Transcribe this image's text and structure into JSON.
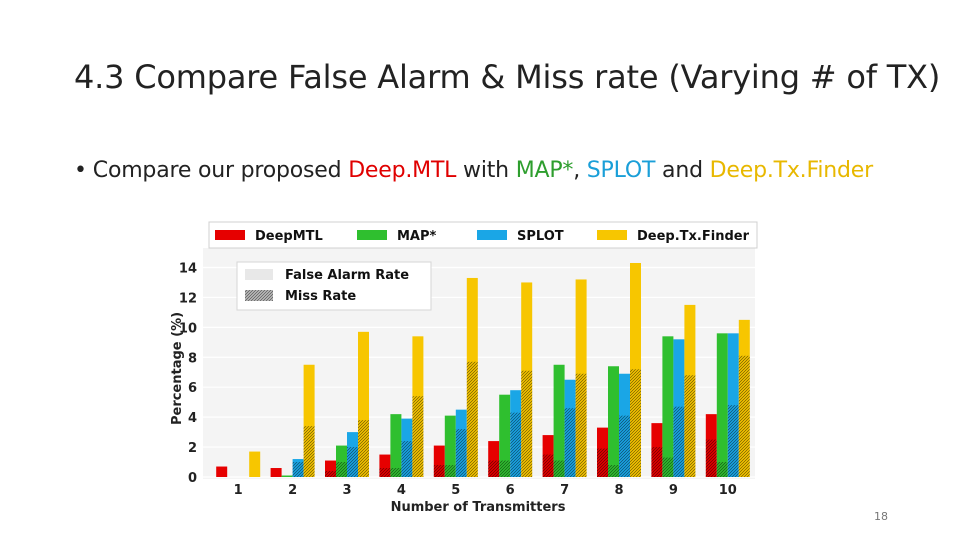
{
  "slide": {
    "title": "4.3 Compare False Alarm & Miss rate (Varying # of TX)",
    "bullet_parts": [
      {
        "text": "Compare our proposed ",
        "color": "#222222"
      },
      {
        "text": "Deep.MTL",
        "color": "#e00000"
      },
      {
        "text": " with ",
        "color": "#222222"
      },
      {
        "text": "MAP*",
        "color": "#2e9e2e"
      },
      {
        "text": ", ",
        "color": "#222222"
      },
      {
        "text": "SPLOT",
        "color": "#1a9fd8"
      },
      {
        "text": " and ",
        "color": "#222222"
      },
      {
        "text": "Deep.Tx.Finder",
        "color": "#e8b800"
      }
    ],
    "page_number": "18"
  },
  "chart_data": {
    "type": "bar",
    "subtype": "grouped-stacked",
    "xlabel": "Number of Transmitters",
    "ylabel": "Percentage (%)",
    "ylim": [
      0,
      14.5
    ],
    "yticks": [
      0,
      2,
      4,
      6,
      8,
      10,
      12,
      14
    ],
    "categories": [
      "1",
      "2",
      "3",
      "4",
      "5",
      "6",
      "7",
      "8",
      "9",
      "10"
    ],
    "legend_methods": {
      "placement": "top"
    },
    "legend_components": {
      "placement": "top-left",
      "entries": [
        {
          "name": "False Alarm Rate",
          "pattern": "solid"
        },
        {
          "name": "Miss Rate",
          "pattern": "hatched"
        }
      ]
    },
    "series": [
      {
        "name": "DeepMTL",
        "color": "#e60000",
        "total": [
          0.7,
          0.6,
          1.1,
          1.5,
          2.1,
          2.4,
          2.8,
          3.3,
          3.6,
          4.2
        ],
        "miss": [
          0,
          0,
          0.4,
          0.6,
          0.8,
          1.1,
          1.5,
          1.9,
          2.0,
          2.5
        ]
      },
      {
        "name": "MAP*",
        "color": "#2fbf2f",
        "total": [
          0,
          0.1,
          2.1,
          4.2,
          4.1,
          5.5,
          7.5,
          7.4,
          9.4,
          9.6
        ],
        "miss": [
          0,
          0,
          1.0,
          0.6,
          0.8,
          1.1,
          1.1,
          0.8,
          1.3,
          1.0
        ]
      },
      {
        "name": "SPLOT",
        "color": "#1aa6e6",
        "total": [
          0,
          1.2,
          3.0,
          3.9,
          4.5,
          5.8,
          6.5,
          6.9,
          9.2,
          9.6
        ],
        "miss": [
          0,
          1.0,
          2.0,
          2.4,
          3.2,
          4.3,
          4.6,
          4.1,
          4.7,
          4.8
        ]
      },
      {
        "name": "Deep.Tx.Finder",
        "color": "#f7c600",
        "total": [
          1.7,
          7.5,
          9.7,
          9.4,
          13.3,
          13.0,
          13.2,
          14.3,
          11.5,
          10.5
        ],
        "miss": [
          0,
          3.4,
          3.8,
          5.4,
          7.7,
          7.1,
          6.9,
          7.2,
          6.8,
          8.1
        ]
      }
    ]
  }
}
